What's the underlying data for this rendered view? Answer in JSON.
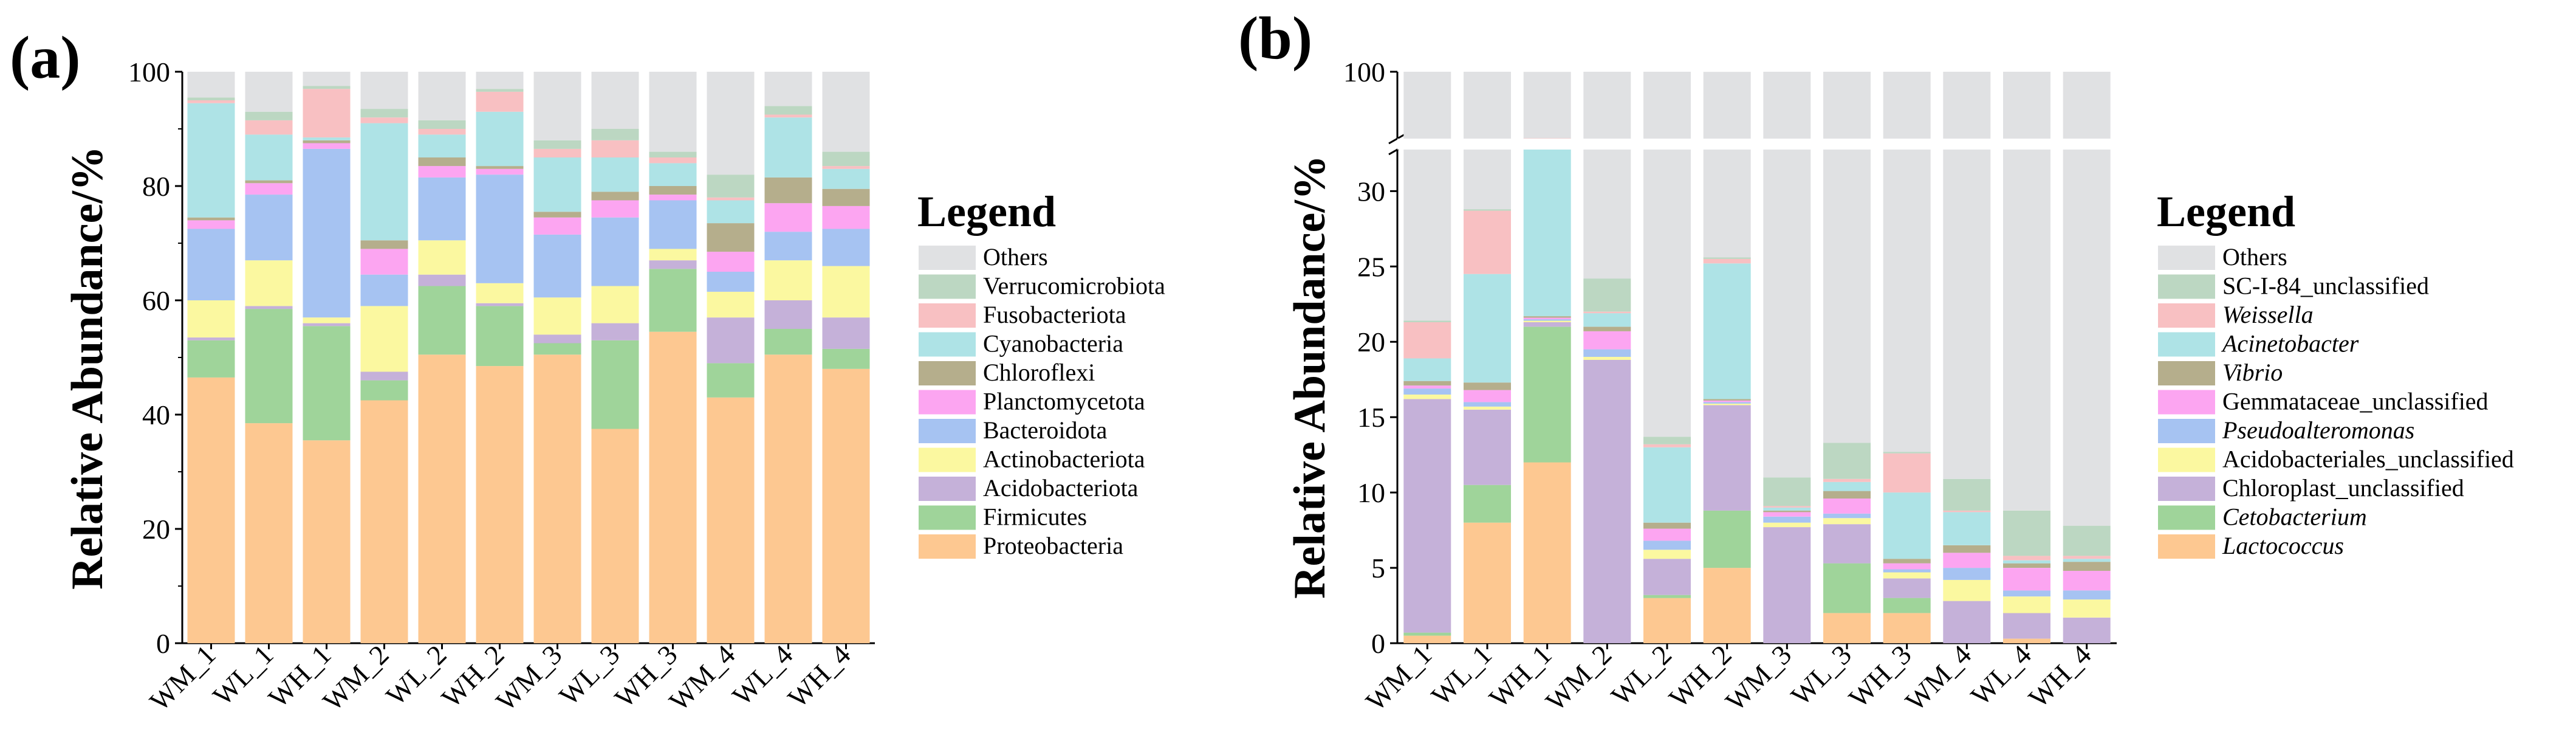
{
  "chart_data": [
    {
      "type": "bar",
      "panel_label": "(a)",
      "stacked": true,
      "ylabel": "Relative Abundance/%",
      "ylim": [
        0,
        100
      ],
      "yticks": [
        "0",
        "20",
        "40",
        "60",
        "80",
        "100"
      ],
      "categories": [
        "WM_1",
        "WL_1",
        "WH_1",
        "WM_2",
        "WL_2",
        "WH_2",
        "WM_3",
        "WL_3",
        "WH_3",
        "WM_4",
        "WL_4",
        "WH_4"
      ],
      "legend_title": "Legend",
      "series": [
        {
          "name": "Proteobacteria",
          "color": "#fdc891",
          "values": [
            46.5,
            38.5,
            35.5,
            42.5,
            50.5,
            48.5,
            50.5,
            37.5,
            54.5,
            43.0,
            50.5,
            48.0
          ]
        },
        {
          "name": "Firmicutes",
          "color": "#9fd49a",
          "values": [
            6.5,
            20.0,
            20.0,
            3.5,
            12.0,
            10.5,
            2.0,
            15.5,
            11.0,
            6.0,
            4.5,
            3.5
          ]
        },
        {
          "name": "Acidobacteriota",
          "color": "#c5b1d9",
          "values": [
            0.5,
            0.5,
            0.5,
            1.5,
            2.0,
            0.5,
            1.5,
            3.0,
            1.5,
            8.0,
            5.0,
            5.5
          ]
        },
        {
          "name": "Actinobacteriota",
          "color": "#fbf8a0",
          "values": [
            6.5,
            8.0,
            1.0,
            11.5,
            6.0,
            3.5,
            6.5,
            6.5,
            2.0,
            4.5,
            7.0,
            9.0
          ]
        },
        {
          "name": "Bacteroidota",
          "color": "#a6c3f2",
          "values": [
            12.5,
            11.5,
            29.5,
            5.5,
            11.0,
            19.0,
            11.0,
            12.0,
            8.5,
            3.5,
            5.0,
            6.5
          ]
        },
        {
          "name": "Planctomycetota",
          "color": "#fca5f1",
          "values": [
            1.5,
            2.0,
            1.0,
            4.5,
            2.0,
            1.0,
            3.0,
            3.0,
            1.0,
            3.5,
            5.0,
            4.0
          ]
        },
        {
          "name": "Chloroflexi",
          "color": "#b5ae8c",
          "values": [
            0.5,
            0.5,
            0.5,
            1.5,
            1.5,
            0.5,
            1.0,
            1.5,
            1.5,
            5.0,
            4.5,
            3.0
          ]
        },
        {
          "name": "Cyanobacteria",
          "color": "#aee3e6",
          "values": [
            20.0,
            8.0,
            0.5,
            20.5,
            4.0,
            9.5,
            9.5,
            6.0,
            4.0,
            4.0,
            10.5,
            3.5
          ]
        },
        {
          "name": "Fusobacteriota",
          "color": "#f8c0c2",
          "values": [
            0.5,
            2.5,
            8.5,
            1.0,
            1.0,
            3.5,
            1.5,
            3.0,
            1.0,
            0.5,
            0.5,
            0.5
          ]
        },
        {
          "name": "Verrucomicrobiota",
          "color": "#bcd7c2",
          "values": [
            0.5,
            1.5,
            0.5,
            1.5,
            1.5,
            0.5,
            1.5,
            2.0,
            1.0,
            4.0,
            1.5,
            2.5
          ]
        },
        {
          "name": "Others",
          "color": "#e0e1e3",
          "values": [
            4.5,
            7.0,
            2.5,
            6.5,
            8.5,
            3.0,
            12.0,
            10.0,
            14.0,
            18.0,
            6.0,
            14.0
          ]
        }
      ]
    },
    {
      "type": "bar",
      "panel_label": "(b)",
      "stacked": true,
      "broken_axis": true,
      "ylabel": "Relative Abundance/%",
      "ylim": [
        0,
        100
      ],
      "yticks": [
        "0",
        "5",
        "10",
        "15",
        "20",
        "25",
        "30",
        "100"
      ],
      "categories": [
        "WM_1",
        "WL_1",
        "WH_1",
        "WM_2",
        "WL_2",
        "WH_2",
        "WM_3",
        "WL_3",
        "WH_3",
        "WM_4",
        "WL_4",
        "WH_4"
      ],
      "legend_title": "Legend",
      "series": [
        {
          "name": "Lactococcus",
          "italic": true,
          "color": "#fdc891",
          "values": [
            0.5,
            8.0,
            12.0,
            0.0,
            3.0,
            5.0,
            0.0,
            2.0,
            2.0,
            0.0,
            0.3,
            0.0
          ]
        },
        {
          "name": "Cetobacterium",
          "italic": true,
          "color": "#9fd49a",
          "values": [
            0.2,
            2.5,
            9.0,
            0.0,
            0.2,
            3.8,
            0.0,
            3.3,
            1.0,
            0.0,
            0.0,
            0.0
          ]
        },
        {
          "name": "Chloroplast_unclassified",
          "italic": false,
          "color": "#c5b1d9",
          "values": [
            15.5,
            5.0,
            0.3,
            18.8,
            2.4,
            7.0,
            7.7,
            2.6,
            1.3,
            2.8,
            1.7,
            1.7
          ]
        },
        {
          "name": "Acidobacteriales_unclassified",
          "italic": false,
          "color": "#fbf8a0",
          "values": [
            0.3,
            0.2,
            0.1,
            0.2,
            0.6,
            0.1,
            0.3,
            0.4,
            0.4,
            1.4,
            1.1,
            1.2
          ]
        },
        {
          "name": "Pseudoalteromonas",
          "italic": true,
          "color": "#a6c3f2",
          "values": [
            0.4,
            0.3,
            0.1,
            0.5,
            0.6,
            0.1,
            0.4,
            0.3,
            0.2,
            0.8,
            0.4,
            0.6
          ]
        },
        {
          "name": "Gemmataceae_unclassified",
          "italic": false,
          "color": "#fca5f1",
          "values": [
            0.2,
            0.8,
            0.1,
            1.2,
            0.8,
            0.1,
            0.3,
            1.0,
            0.4,
            1.0,
            1.5,
            1.3
          ]
        },
        {
          "name": "Vibrio",
          "italic": true,
          "color": "#b5ae8c",
          "values": [
            0.3,
            0.5,
            0.1,
            0.3,
            0.4,
            0.1,
            0.1,
            0.5,
            0.3,
            0.5,
            0.3,
            0.6
          ]
        },
        {
          "name": "Acinetobacter",
          "italic": true,
          "color": "#aee3e6",
          "values": [
            1.5,
            7.2,
            11.2,
            0.9,
            5.0,
            9.0,
            0.2,
            0.6,
            4.4,
            2.2,
            0.2,
            0.2
          ]
        },
        {
          "name": "Weissella",
          "italic": true,
          "color": "#f8c0c2",
          "values": [
            2.4,
            4.2,
            0.4,
            0.1,
            0.2,
            0.3,
            0.1,
            0.2,
            2.6,
            0.1,
            0.3,
            0.2
          ]
        },
        {
          "name": "SC-I-84_unclassified",
          "italic": false,
          "color": "#bcd7c2",
          "values": [
            0.1,
            0.1,
            0.1,
            2.2,
            0.5,
            0.1,
            1.9,
            2.4,
            0.1,
            2.1,
            3.0,
            2.0
          ]
        },
        {
          "name": "Others",
          "italic": false,
          "color": "#e0e1e3",
          "values": [
            78.6,
            71.2,
            66.5,
            75.8,
            86.3,
            74.3,
            89.0,
            86.7,
            88.3,
            89.1,
            91.2,
            92.2
          ]
        }
      ]
    }
  ]
}
